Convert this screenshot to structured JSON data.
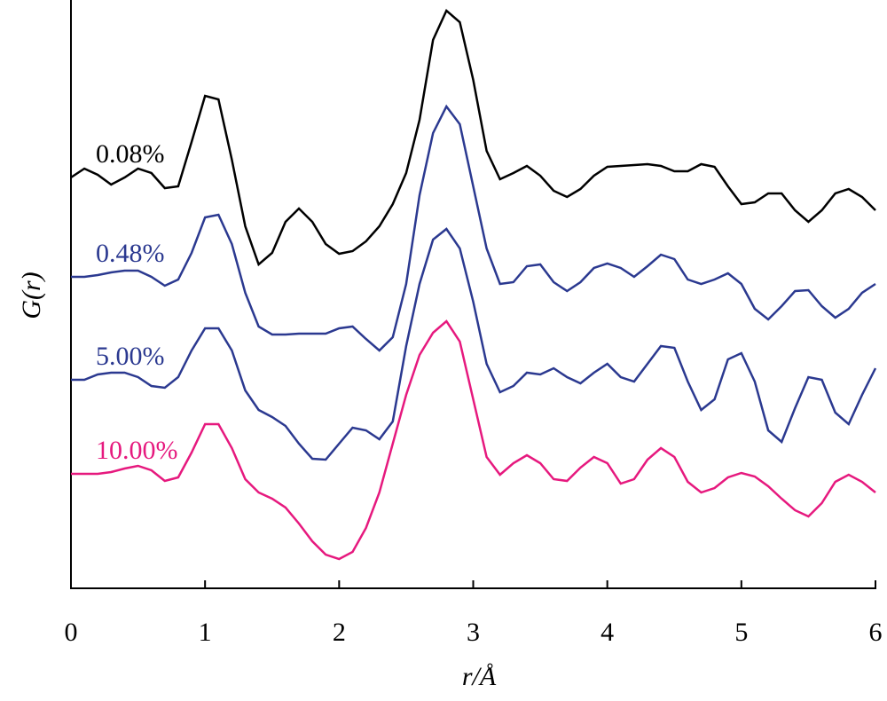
{
  "chart_data": {
    "type": "line",
    "xlabel": "r/Å",
    "ylabel": "G(r)",
    "x": [
      0,
      0.1,
      0.2,
      0.3,
      0.4,
      0.5,
      0.6,
      0.7,
      0.8,
      0.9,
      1,
      1.1,
      1.2,
      1.3,
      1.4,
      1.5,
      1.6,
      1.7,
      1.8,
      1.9,
      2,
      2.1,
      2.2,
      2.3,
      2.4,
      2.5,
      2.6,
      2.7,
      2.8,
      2.9,
      3,
      3.1,
      3.2,
      3.3,
      3.4,
      3.5,
      3.6,
      3.7,
      3.8,
      3.9,
      4,
      4.1,
      4.2,
      4.3,
      4.4,
      4.5,
      4.6,
      4.7,
      4.8,
      4.9,
      5,
      5.1,
      5.2,
      5.3,
      5.4,
      5.5,
      5.6,
      5.7,
      5.8,
      5.9,
      6
    ],
    "series": [
      {
        "name": "0.08%",
        "color": "#000000",
        "values": [
          463,
          473,
          466,
          455,
          463,
          473,
          468,
          451,
          453,
          503,
          555,
          551,
          483,
          408,
          365,
          378,
          413,
          428,
          413,
          388,
          377,
          380,
          391,
          408,
          433,
          468,
          528,
          618,
          651,
          638,
          573,
          493,
          461,
          468,
          476,
          465,
          448,
          441,
          450,
          465,
          475,
          476,
          477,
          478,
          476,
          470,
          470,
          478,
          475,
          453,
          433,
          435,
          445,
          445,
          426,
          413,
          426,
          445,
          450,
          441,
          426
        ]
      },
      {
        "name": "0.48%",
        "color": "#2b3990",
        "values": [
          351,
          351,
          353,
          356,
          358,
          358,
          351,
          341,
          348,
          378,
          418,
          421,
          388,
          333,
          295,
          286,
          286,
          287,
          287,
          287,
          293,
          295,
          281,
          268,
          283,
          343,
          443,
          513,
          543,
          523,
          453,
          383,
          343,
          345,
          363,
          365,
          345,
          335,
          345,
          361,
          366,
          361,
          351,
          363,
          376,
          371,
          348,
          343,
          348,
          355,
          343,
          315,
          303,
          318,
          335,
          336,
          318,
          305,
          315,
          333,
          343
        ]
      },
      {
        "name": "5.00%",
        "color": "#2b3990",
        "values": [
          235,
          235,
          241,
          243,
          243,
          238,
          228,
          226,
          238,
          268,
          293,
          293,
          268,
          223,
          201,
          193,
          183,
          163,
          146,
          145,
          163,
          181,
          178,
          168,
          188,
          273,
          343,
          393,
          405,
          383,
          323,
          253,
          221,
          228,
          243,
          241,
          248,
          238,
          231,
          243,
          253,
          238,
          233,
          253,
          273,
          271,
          233,
          201,
          213,
          258,
          265,
          233,
          178,
          165,
          203,
          238,
          235,
          198,
          185,
          218,
          248
        ]
      },
      {
        "name": "10.00%",
        "color": "#e6197e",
        "values": [
          129,
          129,
          129,
          131,
          135,
          138,
          133,
          121,
          125,
          153,
          185,
          185,
          158,
          123,
          108,
          101,
          91,
          73,
          53,
          38,
          33,
          41,
          68,
          108,
          163,
          218,
          263,
          288,
          301,
          278,
          213,
          148,
          128,
          141,
          150,
          141,
          123,
          121,
          136,
          148,
          141,
          118,
          123,
          145,
          158,
          148,
          120,
          108,
          113,
          125,
          130,
          126,
          115,
          101,
          88,
          81,
          96,
          120,
          128,
          120,
          108
        ]
      }
    ],
    "xlim": [
      0,
      6
    ],
    "xticks": [
      0,
      1,
      2,
      3,
      4,
      5,
      6
    ],
    "ylim": [
      0,
      663
    ]
  }
}
